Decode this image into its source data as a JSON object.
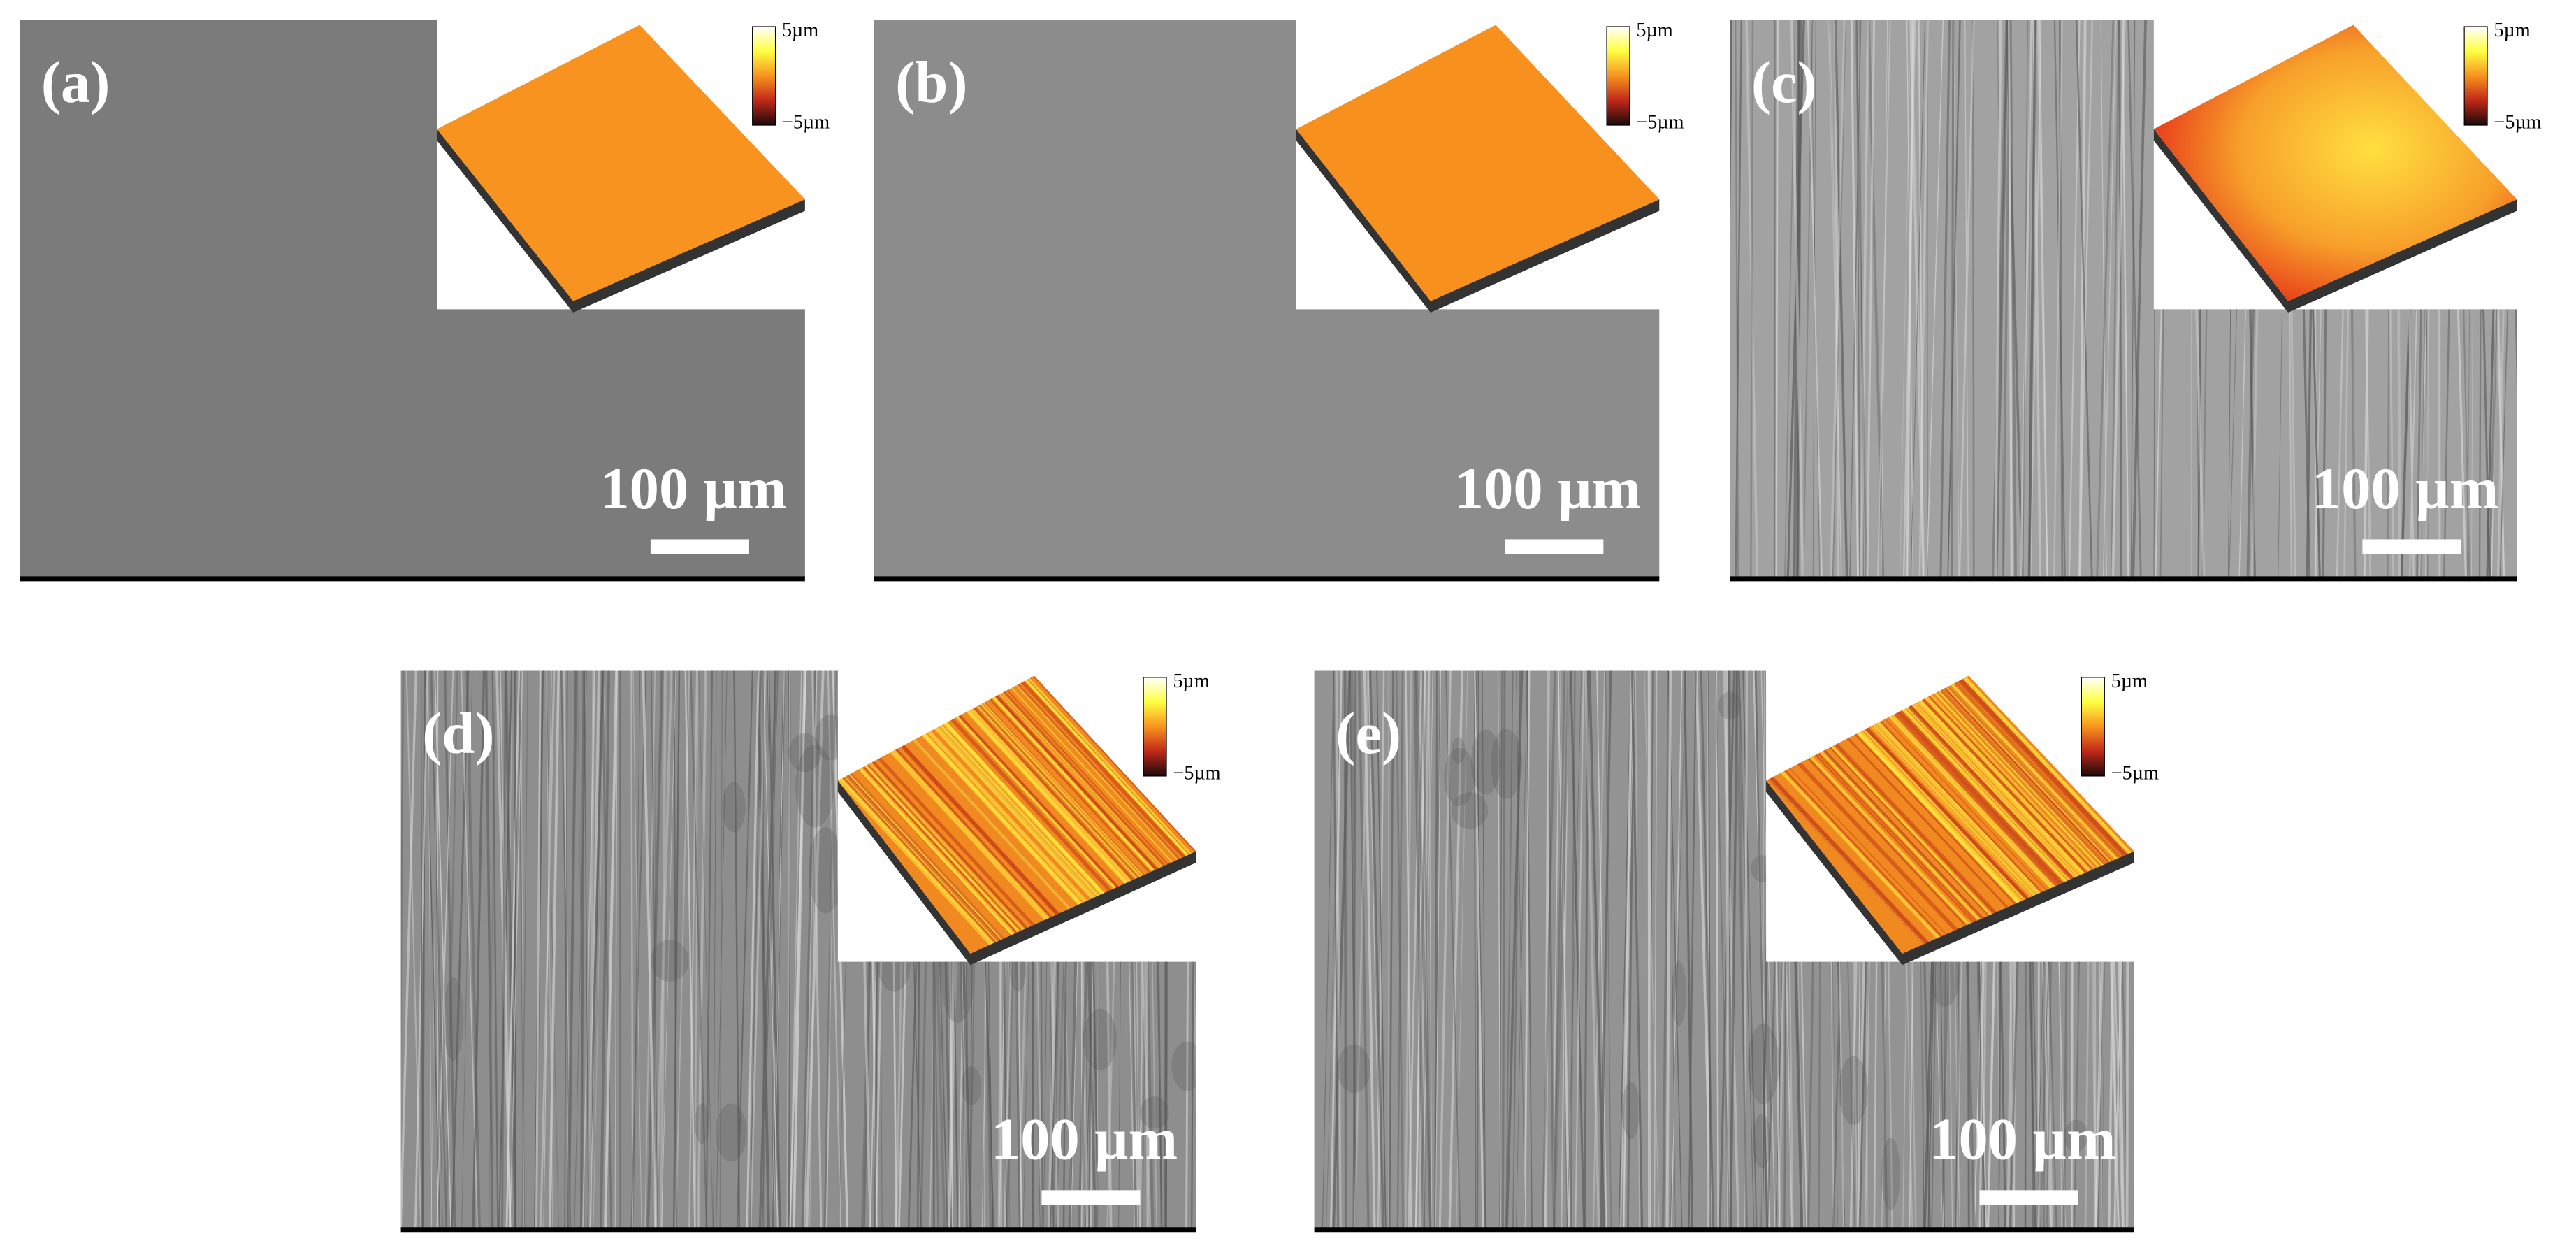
{
  "panels": [
    {
      "label": "(a)",
      "scale_bar": "100 µm",
      "colorbar_max": "5µm",
      "colorbar_min": "−5µm"
    },
    {
      "label": "(b)",
      "scale_bar": "100 µm",
      "colorbar_max": "5µm",
      "colorbar_min": "−5µm"
    },
    {
      "label": "(c)",
      "scale_bar": "100 µm",
      "colorbar_max": "5µm",
      "colorbar_min": "−5µm"
    },
    {
      "label": "(d)",
      "scale_bar": "100 µm",
      "colorbar_max": "5µm",
      "colorbar_min": "−5µm"
    },
    {
      "label": "(e)",
      "scale_bar": "100 µm",
      "colorbar_max": "5µm",
      "colorbar_min": "−5µm"
    }
  ]
}
